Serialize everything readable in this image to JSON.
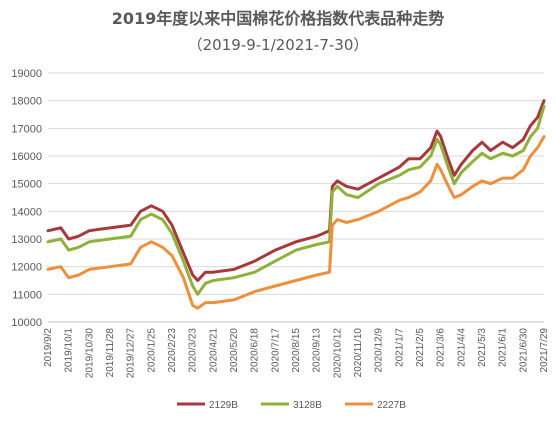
{
  "chart_data": {
    "type": "line",
    "title": "2019年度以来中国棉花价格指数代表品种走势",
    "subtitle": "（2019-9-1/2021-7-30）",
    "ylim": [
      10000,
      19000
    ],
    "yticks": [
      10000,
      11000,
      12000,
      13000,
      14000,
      15000,
      16000,
      17000,
      18000,
      19000
    ],
    "x_tick_labels": [
      "2019/9/2",
      "2019/10/1",
      "2019/10/30",
      "2019/11/28",
      "2019/12/27",
      "2020/1/25",
      "2020/2/23",
      "2020/3/23",
      "2020/4/21",
      "2020/5/20",
      "2020/6/18",
      "2020/7/17",
      "2020/8/15",
      "2020/9/13",
      "2020/10/12",
      "2020/11/10",
      "2020/12/9",
      "2021/1/7",
      "2021/2/5",
      "2021/3/6",
      "2021/4/4",
      "2021/5/3",
      "2021/6/1",
      "2021/6/30",
      "2021/7/29"
    ],
    "legend_position": "bottom",
    "series": [
      {
        "name": "2129B",
        "color": "#a5393c",
        "x": [
          "2019/9/2",
          "2019/9/20",
          "2019/10/1",
          "2019/10/15",
          "2019/10/30",
          "2019/11/28",
          "2019/12/27",
          "2020/1/10",
          "2020/1/25",
          "2020/2/10",
          "2020/2/23",
          "2020/3/10",
          "2020/3/23",
          "2020/3/30",
          "2020/4/10",
          "2020/4/21",
          "2020/5/20",
          "2020/6/18",
          "2020/7/17",
          "2020/8/15",
          "2020/9/13",
          "2020/10/1",
          "2020/10/5",
          "2020/10/12",
          "2020/10/25",
          "2020/11/10",
          "2020/12/9",
          "2021/1/7",
          "2021/1/20",
          "2021/2/5",
          "2021/2/20",
          "2021/3/1",
          "2021/3/6",
          "2021/3/15",
          "2021/3/25",
          "2021/4/4",
          "2021/4/20",
          "2021/5/3",
          "2021/5/15",
          "2021/6/1",
          "2021/6/15",
          "2021/6/30",
          "2021/7/10",
          "2021/7/20",
          "2021/7/29"
        ],
        "values": [
          13300,
          13400,
          13000,
          13100,
          13300,
          13400,
          13500,
          14000,
          14200,
          14000,
          13500,
          12500,
          11700,
          11500,
          11800,
          11800,
          11900,
          12200,
          12600,
          12900,
          13100,
          13300,
          14900,
          15100,
          14900,
          14800,
          15200,
          15600,
          15900,
          15900,
          16300,
          16900,
          16700,
          16000,
          15300,
          15700,
          16200,
          16500,
          16200,
          16500,
          16300,
          16600,
          17100,
          17400,
          18000
        ]
      },
      {
        "name": "3128B",
        "color": "#8fb13c",
        "x": [
          "2019/9/2",
          "2019/9/20",
          "2019/10/1",
          "2019/10/15",
          "2019/10/30",
          "2019/11/28",
          "2019/12/27",
          "2020/1/10",
          "2020/1/25",
          "2020/2/10",
          "2020/2/23",
          "2020/3/10",
          "2020/3/23",
          "2020/3/30",
          "2020/4/10",
          "2020/4/21",
          "2020/5/20",
          "2020/6/18",
          "2020/7/17",
          "2020/8/15",
          "2020/9/13",
          "2020/10/1",
          "2020/10/5",
          "2020/10/12",
          "2020/10/25",
          "2020/11/10",
          "2020/12/9",
          "2021/1/7",
          "2021/1/20",
          "2021/2/5",
          "2021/2/20",
          "2021/3/1",
          "2021/3/6",
          "2021/3/15",
          "2021/3/25",
          "2021/4/4",
          "2021/4/20",
          "2021/5/3",
          "2021/5/15",
          "2021/6/1",
          "2021/6/15",
          "2021/6/30",
          "2021/7/10",
          "2021/7/20",
          "2021/7/29"
        ],
        "values": [
          12900,
          13000,
          12600,
          12700,
          12900,
          13000,
          13100,
          13700,
          13900,
          13700,
          13200,
          12200,
          11300,
          11000,
          11400,
          11500,
          11600,
          11800,
          12200,
          12600,
          12800,
          12900,
          14700,
          14900,
          14600,
          14500,
          15000,
          15300,
          15500,
          15600,
          16000,
          16600,
          16400,
          15700,
          15000,
          15400,
          15800,
          16100,
          15900,
          16100,
          16000,
          16200,
          16700,
          17000,
          17800
        ]
      },
      {
        "name": "2227B",
        "color": "#ed8f3d",
        "x": [
          "2019/9/2",
          "2019/9/20",
          "2019/10/1",
          "2019/10/15",
          "2019/10/30",
          "2019/11/28",
          "2019/12/27",
          "2020/1/10",
          "2020/1/25",
          "2020/2/10",
          "2020/2/23",
          "2020/3/10",
          "2020/3/23",
          "2020/3/30",
          "2020/4/10",
          "2020/4/21",
          "2020/5/20",
          "2020/6/18",
          "2020/7/17",
          "2020/8/15",
          "2020/9/13",
          "2020/10/1",
          "2020/10/5",
          "2020/10/12",
          "2020/10/25",
          "2020/11/10",
          "2020/12/9",
          "2021/1/7",
          "2021/1/20",
          "2021/2/5",
          "2021/2/20",
          "2021/3/1",
          "2021/3/6",
          "2021/3/15",
          "2021/3/25",
          "2021/4/4",
          "2021/4/20",
          "2021/5/3",
          "2021/5/15",
          "2021/6/1",
          "2021/6/15",
          "2021/6/30",
          "2021/7/10",
          "2021/7/20",
          "2021/7/29"
        ],
        "values": [
          11900,
          12000,
          11600,
          11700,
          11900,
          12000,
          12100,
          12700,
          12900,
          12700,
          12400,
          11600,
          10600,
          10500,
          10700,
          10700,
          10800,
          11100,
          11300,
          11500,
          11700,
          11800,
          13500,
          13700,
          13600,
          13700,
          14000,
          14400,
          14500,
          14700,
          15100,
          15700,
          15500,
          15000,
          14500,
          14600,
          14900,
          15100,
          15000,
          15200,
          15200,
          15500,
          16000,
          16300,
          16700
        ]
      }
    ]
  }
}
